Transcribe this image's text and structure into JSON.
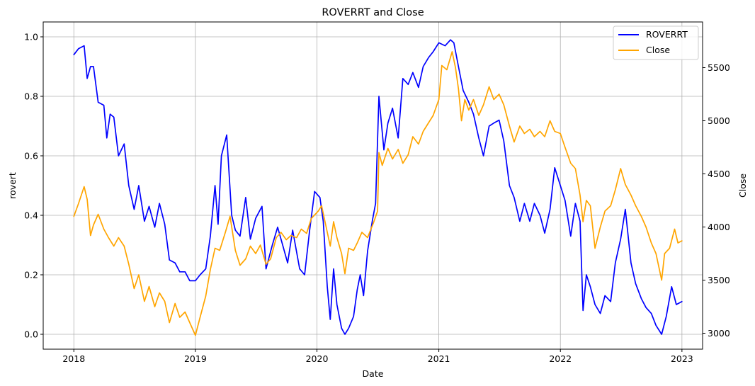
{
  "chart_data": {
    "type": "line",
    "title": "ROVERRT and Close",
    "xlabel": "Date",
    "ylabel_left": "rovert",
    "ylabel_right": "Close",
    "x_range": [
      "2017-10-01",
      "2023-03-04"
    ],
    "x_ticks": [
      "2018",
      "2019",
      "2020",
      "2021",
      "2022",
      "2023"
    ],
    "y_left_range": [
      -0.05,
      1.05
    ],
    "y_left_ticks": [
      "0.0",
      "0.2",
      "0.4",
      "0.6",
      "0.8",
      "1.0"
    ],
    "y_right_range": [
      2850,
      5930
    ],
    "y_right_ticks": [
      "3000",
      "3500",
      "4000",
      "4500",
      "5000",
      "5500"
    ],
    "grid": true,
    "legend_position": "top-right",
    "colors": {
      "ROVERRT": "#0000ff",
      "Close": "#ffa500"
    },
    "series": [
      {
        "name": "ROVERRT",
        "axis": "left",
        "points": [
          [
            "2018-01-01",
            0.94
          ],
          [
            "2018-01-15",
            0.96
          ],
          [
            "2018-02-01",
            0.97
          ],
          [
            "2018-02-10",
            0.86
          ],
          [
            "2018-02-20",
            0.9
          ],
          [
            "2018-03-01",
            0.9
          ],
          [
            "2018-03-15",
            0.78
          ],
          [
            "2018-04-01",
            0.77
          ],
          [
            "2018-04-10",
            0.66
          ],
          [
            "2018-04-20",
            0.74
          ],
          [
            "2018-05-01",
            0.73
          ],
          [
            "2018-05-15",
            0.6
          ],
          [
            "2018-06-01",
            0.64
          ],
          [
            "2018-06-15",
            0.5
          ],
          [
            "2018-07-01",
            0.42
          ],
          [
            "2018-07-15",
            0.5
          ],
          [
            "2018-08-01",
            0.38
          ],
          [
            "2018-08-15",
            0.43
          ],
          [
            "2018-09-01",
            0.36
          ],
          [
            "2018-09-15",
            0.44
          ],
          [
            "2018-10-01",
            0.37
          ],
          [
            "2018-10-15",
            0.25
          ],
          [
            "2018-11-01",
            0.24
          ],
          [
            "2018-11-15",
            0.21
          ],
          [
            "2018-12-01",
            0.21
          ],
          [
            "2018-12-15",
            0.18
          ],
          [
            "2019-01-01",
            0.18
          ],
          [
            "2019-01-15",
            0.2
          ],
          [
            "2019-02-01",
            0.22
          ],
          [
            "2019-02-15",
            0.33
          ],
          [
            "2019-03-01",
            0.5
          ],
          [
            "2019-03-10",
            0.37
          ],
          [
            "2019-03-20",
            0.6
          ],
          [
            "2019-04-05",
            0.67
          ],
          [
            "2019-04-20",
            0.4
          ],
          [
            "2019-05-01",
            0.35
          ],
          [
            "2019-05-15",
            0.33
          ],
          [
            "2019-06-01",
            0.46
          ],
          [
            "2019-06-15",
            0.32
          ],
          [
            "2019-07-01",
            0.39
          ],
          [
            "2019-07-20",
            0.43
          ],
          [
            "2019-08-01",
            0.22
          ],
          [
            "2019-08-20",
            0.3
          ],
          [
            "2019-09-05",
            0.36
          ],
          [
            "2019-09-20",
            0.3
          ],
          [
            "2019-10-05",
            0.24
          ],
          [
            "2019-10-20",
            0.35
          ],
          [
            "2019-11-10",
            0.22
          ],
          [
            "2019-11-25",
            0.2
          ],
          [
            "2019-12-10",
            0.35
          ],
          [
            "2019-12-25",
            0.48
          ],
          [
            "2020-01-10",
            0.46
          ],
          [
            "2020-01-20",
            0.38
          ],
          [
            "2020-02-01",
            0.16
          ],
          [
            "2020-02-10",
            0.05
          ],
          [
            "2020-02-20",
            0.22
          ],
          [
            "2020-03-01",
            0.1
          ],
          [
            "2020-03-15",
            0.02
          ],
          [
            "2020-03-25",
            0.0
          ],
          [
            "2020-04-05",
            0.02
          ],
          [
            "2020-04-20",
            0.06
          ],
          [
            "2020-05-01",
            0.15
          ],
          [
            "2020-05-10",
            0.2
          ],
          [
            "2020-05-20",
            0.13
          ],
          [
            "2020-06-01",
            0.28
          ],
          [
            "2020-06-15",
            0.38
          ],
          [
            "2020-06-25",
            0.44
          ],
          [
            "2020-07-05",
            0.8
          ],
          [
            "2020-07-20",
            0.62
          ],
          [
            "2020-08-01",
            0.71
          ],
          [
            "2020-08-15",
            0.76
          ],
          [
            "2020-09-01",
            0.66
          ],
          [
            "2020-09-15",
            0.86
          ],
          [
            "2020-10-01",
            0.84
          ],
          [
            "2020-10-15",
            0.88
          ],
          [
            "2020-11-01",
            0.83
          ],
          [
            "2020-11-15",
            0.9
          ],
          [
            "2020-12-01",
            0.93
          ],
          [
            "2020-12-15",
            0.95
          ],
          [
            "2021-01-01",
            0.98
          ],
          [
            "2021-01-20",
            0.97
          ],
          [
            "2021-02-05",
            0.99
          ],
          [
            "2021-02-15",
            0.98
          ],
          [
            "2021-03-01",
            0.9
          ],
          [
            "2021-03-15",
            0.82
          ],
          [
            "2021-04-01",
            0.78
          ],
          [
            "2021-04-15",
            0.74
          ],
          [
            "2021-05-01",
            0.66
          ],
          [
            "2021-05-15",
            0.6
          ],
          [
            "2021-06-01",
            0.7
          ],
          [
            "2021-06-15",
            0.71
          ],
          [
            "2021-07-01",
            0.72
          ],
          [
            "2021-07-15",
            0.65
          ],
          [
            "2021-08-01",
            0.5
          ],
          [
            "2021-08-15",
            0.46
          ],
          [
            "2021-09-01",
            0.38
          ],
          [
            "2021-09-15",
            0.44
          ],
          [
            "2021-10-01",
            0.38
          ],
          [
            "2021-10-15",
            0.44
          ],
          [
            "2021-11-01",
            0.4
          ],
          [
            "2021-11-15",
            0.34
          ],
          [
            "2021-12-01",
            0.42
          ],
          [
            "2021-12-15",
            0.56
          ],
          [
            "2022-01-01",
            0.5
          ],
          [
            "2022-01-15",
            0.45
          ],
          [
            "2022-02-01",
            0.33
          ],
          [
            "2022-02-15",
            0.44
          ],
          [
            "2022-03-01",
            0.38
          ],
          [
            "2022-03-10",
            0.08
          ],
          [
            "2022-03-20",
            0.2
          ],
          [
            "2022-04-01",
            0.16
          ],
          [
            "2022-04-15",
            0.1
          ],
          [
            "2022-05-01",
            0.07
          ],
          [
            "2022-05-15",
            0.13
          ],
          [
            "2022-06-01",
            0.11
          ],
          [
            "2022-06-15",
            0.24
          ],
          [
            "2022-07-01",
            0.32
          ],
          [
            "2022-07-15",
            0.42
          ],
          [
            "2022-08-01",
            0.24
          ],
          [
            "2022-08-15",
            0.17
          ],
          [
            "2022-09-01",
            0.12
          ],
          [
            "2022-09-15",
            0.09
          ],
          [
            "2022-10-01",
            0.07
          ],
          [
            "2022-10-15",
            0.03
          ],
          [
            "2022-11-01",
            0.0
          ],
          [
            "2022-11-15",
            0.06
          ],
          [
            "2022-12-01",
            0.16
          ],
          [
            "2022-12-15",
            0.1
          ],
          [
            "2023-01-01",
            0.11
          ]
        ]
      },
      {
        "name": "Close",
        "axis": "right",
        "points": [
          [
            "2018-01-01",
            4100
          ],
          [
            "2018-01-15",
            4220
          ],
          [
            "2018-02-01",
            4380
          ],
          [
            "2018-02-10",
            4260
          ],
          [
            "2018-02-20",
            3920
          ],
          [
            "2018-03-01",
            4020
          ],
          [
            "2018-03-15",
            4120
          ],
          [
            "2018-04-01",
            3980
          ],
          [
            "2018-04-15",
            3900
          ],
          [
            "2018-05-01",
            3820
          ],
          [
            "2018-05-15",
            3900
          ],
          [
            "2018-06-01",
            3820
          ],
          [
            "2018-06-15",
            3650
          ],
          [
            "2018-07-01",
            3420
          ],
          [
            "2018-07-15",
            3550
          ],
          [
            "2018-08-01",
            3300
          ],
          [
            "2018-08-15",
            3440
          ],
          [
            "2018-09-01",
            3250
          ],
          [
            "2018-09-15",
            3380
          ],
          [
            "2018-10-01",
            3300
          ],
          [
            "2018-10-15",
            3100
          ],
          [
            "2018-11-01",
            3280
          ],
          [
            "2018-11-15",
            3150
          ],
          [
            "2018-12-01",
            3200
          ],
          [
            "2018-12-15",
            3100
          ],
          [
            "2019-01-01",
            2980
          ],
          [
            "2019-01-15",
            3150
          ],
          [
            "2019-02-01",
            3350
          ],
          [
            "2019-02-15",
            3600
          ],
          [
            "2019-03-01",
            3800
          ],
          [
            "2019-03-15",
            3780
          ],
          [
            "2019-04-01",
            3950
          ],
          [
            "2019-04-15",
            4100
          ],
          [
            "2019-05-01",
            3780
          ],
          [
            "2019-05-15",
            3640
          ],
          [
            "2019-06-01",
            3700
          ],
          [
            "2019-06-15",
            3820
          ],
          [
            "2019-07-01",
            3750
          ],
          [
            "2019-07-15",
            3830
          ],
          [
            "2019-08-01",
            3650
          ],
          [
            "2019-08-15",
            3700
          ],
          [
            "2019-09-01",
            3900
          ],
          [
            "2019-09-15",
            3950
          ],
          [
            "2019-10-01",
            3880
          ],
          [
            "2019-10-15",
            3920
          ],
          [
            "2019-11-01",
            3900
          ],
          [
            "2019-11-15",
            3980
          ],
          [
            "2019-12-01",
            3940
          ],
          [
            "2019-12-15",
            4080
          ],
          [
            "2020-01-05",
            4150
          ],
          [
            "2020-01-15",
            4200
          ],
          [
            "2020-02-01",
            3950
          ],
          [
            "2020-02-10",
            3820
          ],
          [
            "2020-02-20",
            4050
          ],
          [
            "2020-03-01",
            3900
          ],
          [
            "2020-03-15",
            3750
          ],
          [
            "2020-03-25",
            3560
          ],
          [
            "2020-04-05",
            3800
          ],
          [
            "2020-04-20",
            3780
          ],
          [
            "2020-05-01",
            3850
          ],
          [
            "2020-05-15",
            3950
          ],
          [
            "2020-06-01",
            3900
          ],
          [
            "2020-06-20",
            4050
          ],
          [
            "2020-07-01",
            4150
          ],
          [
            "2020-07-05",
            4700
          ],
          [
            "2020-07-15",
            4580
          ],
          [
            "2020-08-01",
            4740
          ],
          [
            "2020-08-15",
            4640
          ],
          [
            "2020-09-01",
            4730
          ],
          [
            "2020-09-15",
            4600
          ],
          [
            "2020-10-01",
            4680
          ],
          [
            "2020-10-15",
            4850
          ],
          [
            "2020-11-01",
            4780
          ],
          [
            "2020-11-15",
            4900
          ],
          [
            "2020-12-01",
            4980
          ],
          [
            "2020-12-15",
            5050
          ],
          [
            "2021-01-01",
            5200
          ],
          [
            "2021-01-10",
            5520
          ],
          [
            "2021-01-25",
            5480
          ],
          [
            "2021-02-10",
            5650
          ],
          [
            "2021-02-20",
            5500
          ],
          [
            "2021-03-01",
            5300
          ],
          [
            "2021-03-10",
            5000
          ],
          [
            "2021-03-20",
            5200
          ],
          [
            "2021-04-01",
            5100
          ],
          [
            "2021-04-15",
            5200
          ],
          [
            "2021-05-01",
            5050
          ],
          [
            "2021-05-15",
            5150
          ],
          [
            "2021-06-01",
            5320
          ],
          [
            "2021-06-15",
            5200
          ],
          [
            "2021-07-01",
            5250
          ],
          [
            "2021-07-15",
            5150
          ],
          [
            "2021-08-01",
            4950
          ],
          [
            "2021-08-15",
            4800
          ],
          [
            "2021-09-01",
            4950
          ],
          [
            "2021-09-15",
            4880
          ],
          [
            "2021-10-01",
            4920
          ],
          [
            "2021-10-15",
            4850
          ],
          [
            "2021-11-01",
            4900
          ],
          [
            "2021-11-15",
            4850
          ],
          [
            "2021-12-01",
            5000
          ],
          [
            "2021-12-15",
            4900
          ],
          [
            "2022-01-01",
            4880
          ],
          [
            "2022-01-15",
            4750
          ],
          [
            "2022-02-01",
            4600
          ],
          [
            "2022-02-15",
            4550
          ],
          [
            "2022-03-01",
            4300
          ],
          [
            "2022-03-10",
            4050
          ],
          [
            "2022-03-20",
            4250
          ],
          [
            "2022-04-01",
            4200
          ],
          [
            "2022-04-15",
            3800
          ],
          [
            "2022-05-01",
            4000
          ],
          [
            "2022-05-15",
            4150
          ],
          [
            "2022-06-01",
            4200
          ],
          [
            "2022-06-15",
            4350
          ],
          [
            "2022-07-01",
            4550
          ],
          [
            "2022-07-15",
            4400
          ],
          [
            "2022-08-01",
            4300
          ],
          [
            "2022-08-15",
            4200
          ],
          [
            "2022-09-01",
            4100
          ],
          [
            "2022-09-15",
            4000
          ],
          [
            "2022-10-01",
            3850
          ],
          [
            "2022-10-15",
            3750
          ],
          [
            "2022-11-01",
            3500
          ],
          [
            "2022-11-10",
            3750
          ],
          [
            "2022-11-25",
            3800
          ],
          [
            "2022-12-10",
            3980
          ],
          [
            "2022-12-20",
            3850
          ],
          [
            "2023-01-01",
            3870
          ]
        ]
      }
    ]
  }
}
